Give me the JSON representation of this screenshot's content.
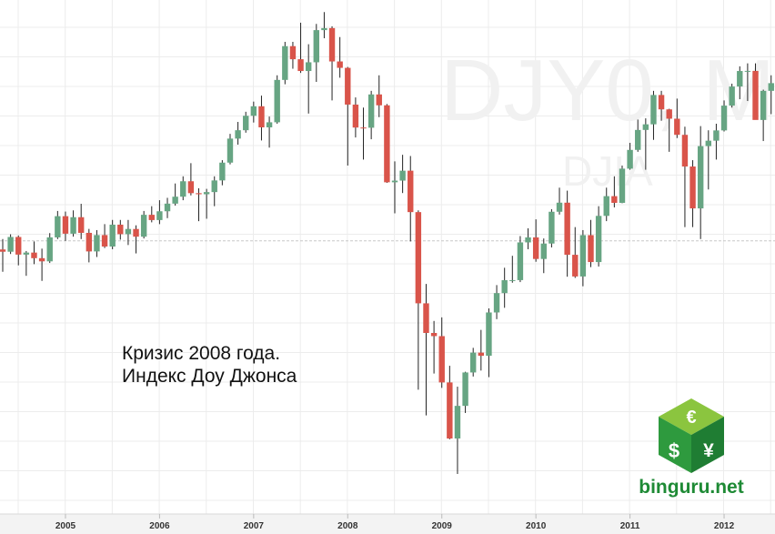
{
  "chart_data": {
    "type": "candlestick",
    "watermark": "DJY0, M",
    "watermark_sub": "DJIA",
    "annotation": [
      "Кризис 2008 года.",
      "Индекс Доу Джонса"
    ],
    "logo": {
      "text": "binguru.net",
      "symbols": [
        "€",
        "$",
        "¥"
      ]
    },
    "categories": [
      null,
      null,
      null,
      null,
      null,
      null,
      null,
      null,
      "2005",
      null,
      null,
      null,
      null,
      null,
      null,
      null,
      null,
      null,
      null,
      null,
      "2006",
      null,
      null,
      null,
      null,
      null,
      null,
      null,
      null,
      null,
      null,
      null,
      "2007",
      null,
      null,
      null,
      null,
      null,
      null,
      null,
      null,
      null,
      null,
      null,
      "2008",
      null,
      null,
      null,
      null,
      null,
      null,
      null,
      null,
      null,
      null,
      null,
      "2009",
      null,
      null,
      null,
      null,
      null,
      null,
      null,
      null,
      null,
      null,
      null,
      "2010",
      null,
      null,
      null,
      null,
      null,
      null,
      null,
      null,
      null,
      null,
      null,
      "2011",
      null,
      null,
      null,
      null,
      null,
      null,
      null,
      null,
      null,
      null,
      null,
      "2012",
      null,
      null,
      null,
      null,
      null,
      null
    ],
    "open": [
      10226,
      10188,
      10435,
      10140,
      10174,
      10080,
      10027,
      10428,
      10783,
      10490,
      10766,
      10504,
      10193,
      10467,
      10275,
      10641,
      10482,
      10569,
      10440,
      10806,
      10718,
      10865,
      10993,
      11109,
      11367,
      11168,
      11150,
      11186,
      11381,
      11679,
      12081,
      12221,
      12463,
      12622,
      12269,
      12354,
      13063,
      13628,
      13409,
      13212,
      13358,
      13896,
      13930,
      13372,
      13265,
      12650,
      12266,
      12263,
      12820,
      12638,
      11350,
      11378,
      11544,
      10851,
      9325,
      8829,
      8776,
      8001,
      7063,
      7609,
      8168,
      8500,
      8447,
      9172,
      9496,
      9712,
      9713,
      10344,
      10428,
      10067,
      10325,
      10857,
      11009,
      10137,
      9774,
      10466,
      10015,
      10788,
      11118,
      11006,
      11578,
      11892,
      12226,
      12320,
      12811,
      12570,
      12414,
      12144,
      11614,
      10913,
      11955,
      12046,
      12218,
      12633,
      12952,
      13212,
      13214,
      12393,
      12880
    ],
    "high": [
      10400,
      10480,
      10460,
      10200,
      10360,
      10240,
      10500,
      10870,
      10860,
      10880,
      10990,
      10570,
      10550,
      10650,
      10720,
      10720,
      10720,
      10630,
      10870,
      10950,
      11050,
      11090,
      11330,
      11450,
      11670,
      11250,
      11240,
      11450,
      11720,
      12160,
      12360,
      12530,
      12700,
      12800,
      12450,
      13140,
      13700,
      13700,
      14020,
      13660,
      14000,
      14198,
      13960,
      13780,
      13280,
      12770,
      12600,
      12880,
      13140,
      12660,
      11700,
      11810,
      11790,
      10880,
      9650,
      9030,
      9090,
      8280,
      7930,
      8180,
      8580,
      8880,
      9240,
      9630,
      9920,
      10120,
      10450,
      10580,
      10730,
      10410,
      10900,
      11260,
      11210,
      10600,
      10550,
      10720,
      10950,
      11260,
      11450,
      11630,
      12010,
      12400,
      12420,
      12880,
      12880,
      12580,
      12750,
      12280,
      11720,
      12290,
      12220,
      12330,
      12720,
      13000,
      13290,
      13340,
      13340,
      12900,
      13140
    ],
    "low": [
      9852,
      10150,
      9960,
      9785,
      9980,
      9700,
      10000,
      10400,
      10370,
      10440,
      10400,
      10010,
      10100,
      10250,
      10230,
      10390,
      10300,
      10160,
      10410,
      10680,
      10650,
      10750,
      10960,
      11050,
      11130,
      10700,
      10740,
      10950,
      11300,
      11650,
      11980,
      12180,
      12350,
      12050,
      11930,
      12330,
      12990,
      13250,
      13180,
      12500,
      13030,
      13760,
      12720,
      13100,
      11630,
      12100,
      11730,
      12070,
      12440,
      11340,
      10830,
      11170,
      10360,
      7880,
      7450,
      8150,
      7910,
      7050,
      6470,
      7490,
      8100,
      8200,
      8090,
      9060,
      9250,
      9670,
      9680,
      10230,
      10020,
      9830,
      10260,
      10810,
      9770,
      9750,
      9610,
      9930,
      9940,
      10700,
      10930,
      11000,
      11560,
      11860,
      11560,
      12060,
      12380,
      11860,
      12090,
      10600,
      10600,
      10400,
      11230,
      11730,
      12200,
      12600,
      12740,
      12710,
      12430,
      12040,
      12490
    ],
    "close": [
      10188,
      10435,
      10140,
      10174,
      10080,
      10027,
      10428,
      10783,
      10490,
      10766,
      10504,
      10193,
      10467,
      10275,
      10641,
      10482,
      10569,
      10440,
      10806,
      10718,
      10865,
      10993,
      11109,
      11367,
      11168,
      11150,
      11186,
      11381,
      11679,
      12081,
      12221,
      12463,
      12622,
      12269,
      12354,
      13063,
      13628,
      13409,
      13212,
      13358,
      13896,
      13930,
      13372,
      13265,
      12650,
      12266,
      12263,
      12820,
      12638,
      11350,
      11378,
      11544,
      10851,
      9325,
      8829,
      8776,
      8001,
      7063,
      7609,
      8168,
      8500,
      8447,
      9172,
      9496,
      9712,
      9713,
      10344,
      10428,
      10067,
      10325,
      10857,
      11009,
      10137,
      9774,
      10466,
      10015,
      10788,
      11118,
      11006,
      11578,
      11892,
      12226,
      12320,
      12811,
      12570,
      12414,
      12144,
      11614,
      10913,
      11955,
      12046,
      12218,
      12633,
      12952,
      13212,
      13214,
      12393,
      12880,
      13009
    ],
    "up_color": "#67a583",
    "down_color": "#d9544a",
    "reference_line": 10370,
    "ylim": [
      5800,
      14400
    ]
  }
}
